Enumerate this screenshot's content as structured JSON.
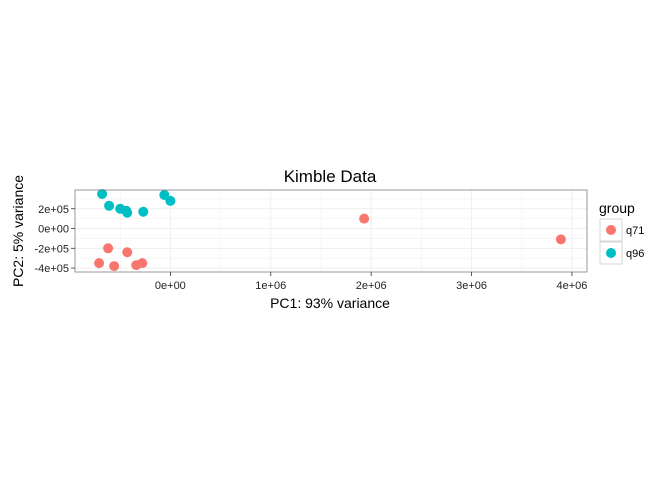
{
  "chart_data": {
    "type": "scatter",
    "title": "Kimble Data",
    "xlabel": "PC1: 93% variance",
    "ylabel": "PC2: 5% variance",
    "xlim": [
      -950000,
      4150000
    ],
    "ylim": [
      -440000,
      390000
    ],
    "x_ticks": [
      0,
      1000000,
      2000000,
      3000000,
      4000000
    ],
    "x_tick_labels": [
      "0e+00",
      "1e+06",
      "2e+06",
      "3e+06",
      "4e+06"
    ],
    "y_ticks": [
      -400000,
      -200000,
      0,
      200000
    ],
    "y_tick_labels": [
      "-4e+05",
      "-2e+05",
      "0e+00",
      "2e+05"
    ],
    "grid": true,
    "legend": {
      "title": "group",
      "position": "right"
    },
    "series": [
      {
        "name": "q71",
        "color": "#F8766D",
        "points": [
          {
            "x": 1930000,
            "y": 100000
          },
          {
            "x": 3890000,
            "y": -110000
          },
          {
            "x": -620000,
            "y": -200000
          },
          {
            "x": -430000,
            "y": -240000
          },
          {
            "x": -710000,
            "y": -350000
          },
          {
            "x": -560000,
            "y": -380000
          },
          {
            "x": -340000,
            "y": -370000
          },
          {
            "x": -280000,
            "y": -350000
          }
        ]
      },
      {
        "name": "q96",
        "color": "#00BFC4",
        "points": [
          {
            "x": -680000,
            "y": 350000
          },
          {
            "x": -60000,
            "y": 340000
          },
          {
            "x": 0,
            "y": 280000
          },
          {
            "x": -610000,
            "y": 230000
          },
          {
            "x": -500000,
            "y": 200000
          },
          {
            "x": -440000,
            "y": 180000
          },
          {
            "x": -430000,
            "y": 160000
          },
          {
            "x": -270000,
            "y": 170000
          }
        ]
      }
    ]
  }
}
